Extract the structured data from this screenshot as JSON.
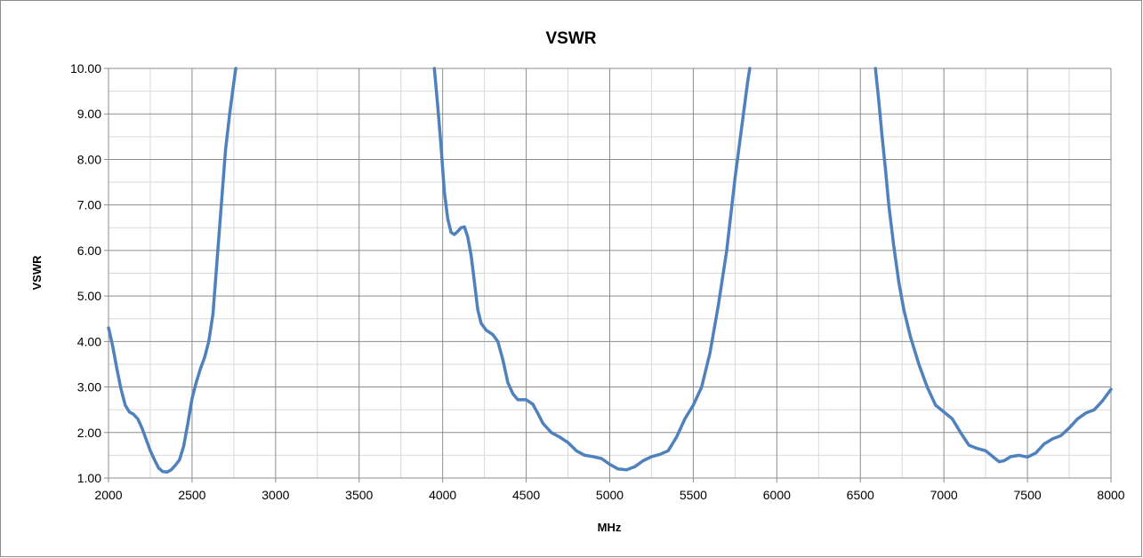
{
  "chart_data": {
    "type": "line",
    "title": "VSWR",
    "xlabel": "MHz",
    "ylabel": "VSWR",
    "xlim": [
      2000,
      8000
    ],
    "ylim": [
      1,
      10
    ],
    "x_ticks": [
      "2000",
      "2500",
      "3000",
      "3500",
      "4000",
      "4500",
      "5000",
      "5500",
      "6000",
      "6500",
      "7000",
      "7500",
      "8000"
    ],
    "y_ticks": [
      "1.00",
      "2.00",
      "3.00",
      "4.00",
      "5.00",
      "6.00",
      "7.00",
      "8.00",
      "9.00",
      "10.00"
    ],
    "x_minor_step": 250,
    "y_minor_step": 0.5,
    "grid": true,
    "legend": "none",
    "line_color": "#4f81bd",
    "segments": [
      [
        [
          2000,
          4.3
        ],
        [
          2025,
          3.9
        ],
        [
          2050,
          3.4
        ],
        [
          2075,
          2.95
        ],
        [
          2100,
          2.6
        ],
        [
          2125,
          2.45
        ],
        [
          2150,
          2.4
        ],
        [
          2175,
          2.3
        ],
        [
          2200,
          2.1
        ],
        [
          2225,
          1.85
        ],
        [
          2250,
          1.6
        ],
        [
          2275,
          1.4
        ],
        [
          2300,
          1.22
        ],
        [
          2325,
          1.14
        ],
        [
          2350,
          1.13
        ],
        [
          2375,
          1.18
        ],
        [
          2400,
          1.28
        ],
        [
          2425,
          1.4
        ],
        [
          2450,
          1.7
        ],
        [
          2475,
          2.2
        ],
        [
          2500,
          2.75
        ],
        [
          2525,
          3.1
        ],
        [
          2550,
          3.4
        ],
        [
          2575,
          3.65
        ],
        [
          2600,
          4.0
        ],
        [
          2625,
          4.6
        ],
        [
          2650,
          5.8
        ],
        [
          2675,
          7.0
        ],
        [
          2700,
          8.2
        ],
        [
          2725,
          9.0
        ],
        [
          2750,
          9.7
        ],
        [
          2762,
          10.0
        ]
      ],
      [
        [
          3950,
          10.0
        ],
        [
          3970,
          9.2
        ],
        [
          3990,
          8.3
        ],
        [
          4010,
          7.3
        ],
        [
          4030,
          6.7
        ],
        [
          4050,
          6.4
        ],
        [
          4070,
          6.35
        ],
        [
          4090,
          6.42
        ],
        [
          4110,
          6.5
        ],
        [
          4130,
          6.52
        ],
        [
          4150,
          6.3
        ],
        [
          4170,
          5.9
        ],
        [
          4190,
          5.3
        ],
        [
          4210,
          4.7
        ],
        [
          4230,
          4.4
        ],
        [
          4260,
          4.25
        ],
        [
          4300,
          4.15
        ],
        [
          4330,
          4.0
        ],
        [
          4360,
          3.6
        ],
        [
          4390,
          3.1
        ],
        [
          4420,
          2.85
        ],
        [
          4450,
          2.72
        ],
        [
          4500,
          2.72
        ],
        [
          4540,
          2.62
        ],
        [
          4570,
          2.42
        ],
        [
          4600,
          2.2
        ],
        [
          4650,
          2.0
        ],
        [
          4700,
          1.9
        ],
        [
          4750,
          1.78
        ],
        [
          4800,
          1.6
        ],
        [
          4850,
          1.5
        ],
        [
          4900,
          1.47
        ],
        [
          4950,
          1.43
        ],
        [
          5000,
          1.3
        ],
        [
          5050,
          1.2
        ],
        [
          5100,
          1.18
        ],
        [
          5150,
          1.25
        ],
        [
          5200,
          1.38
        ],
        [
          5250,
          1.47
        ],
        [
          5300,
          1.52
        ],
        [
          5350,
          1.6
        ],
        [
          5400,
          1.9
        ],
        [
          5450,
          2.3
        ],
        [
          5500,
          2.6
        ],
        [
          5550,
          3.0
        ],
        [
          5600,
          3.75
        ],
        [
          5650,
          4.8
        ],
        [
          5700,
          6.0
        ],
        [
          5750,
          7.6
        ],
        [
          5800,
          9.0
        ],
        [
          5825,
          9.7
        ],
        [
          5838,
          10.0
        ]
      ],
      [
        [
          6590,
          10.0
        ],
        [
          6610,
          9.3
        ],
        [
          6630,
          8.5
        ],
        [
          6650,
          7.8
        ],
        [
          6670,
          7.0
        ],
        [
          6700,
          6.1
        ],
        [
          6730,
          5.3
        ],
        [
          6760,
          4.7
        ],
        [
          6800,
          4.1
        ],
        [
          6850,
          3.5
        ],
        [
          6900,
          3.0
        ],
        [
          6950,
          2.6
        ],
        [
          7000,
          2.45
        ],
        [
          7050,
          2.3
        ],
        [
          7100,
          2.0
        ],
        [
          7150,
          1.72
        ],
        [
          7200,
          1.65
        ],
        [
          7250,
          1.6
        ],
        [
          7300,
          1.45
        ],
        [
          7330,
          1.36
        ],
        [
          7360,
          1.38
        ],
        [
          7400,
          1.47
        ],
        [
          7450,
          1.5
        ],
        [
          7500,
          1.46
        ],
        [
          7550,
          1.55
        ],
        [
          7600,
          1.75
        ],
        [
          7650,
          1.86
        ],
        [
          7700,
          1.93
        ],
        [
          7750,
          2.1
        ],
        [
          7800,
          2.3
        ],
        [
          7850,
          2.43
        ],
        [
          7900,
          2.5
        ],
        [
          7950,
          2.7
        ],
        [
          8000,
          2.95
        ]
      ]
    ]
  }
}
